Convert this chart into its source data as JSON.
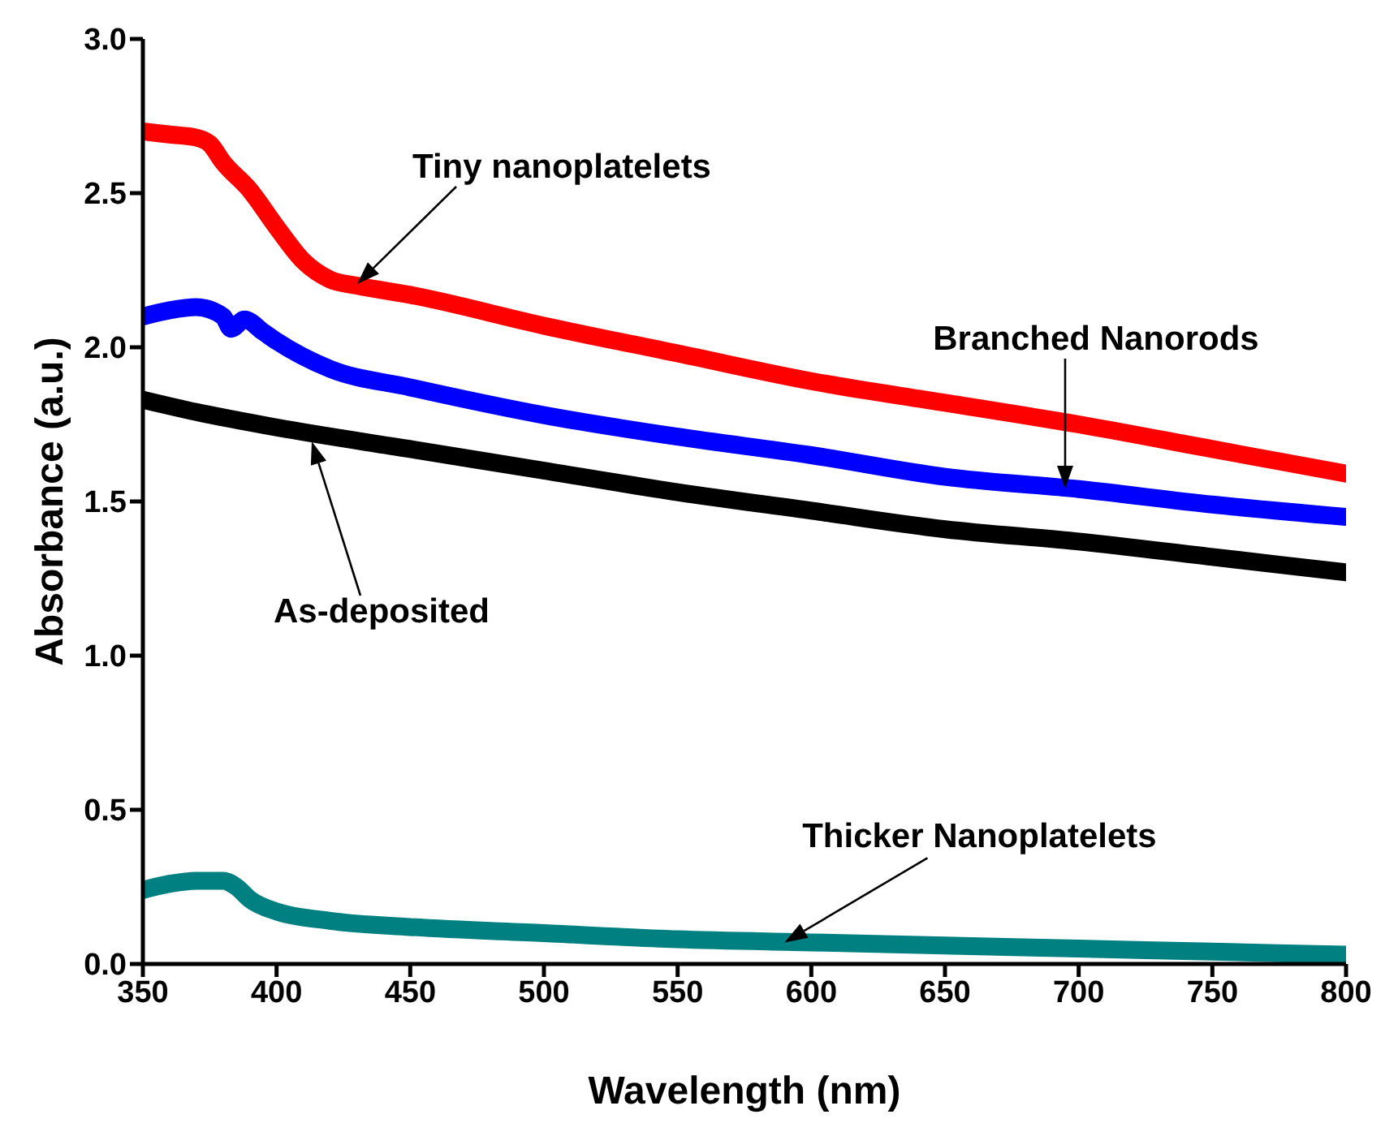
{
  "chart_data": {
    "type": "line",
    "xlabel": "Wavelength (nm)",
    "ylabel": "Absorbance (a.u.)",
    "xlim": [
      350,
      800
    ],
    "xticks": [
      350,
      400,
      450,
      500,
      550,
      600,
      650,
      700,
      750,
      800
    ],
    "ylim": [
      0,
      3.0
    ],
    "yticks": [
      {
        "value": 0,
        "label": "0.0"
      },
      0.5,
      {
        "value": 1,
        "label": "1.0"
      },
      1.5,
      {
        "value": 2,
        "label": "2.0"
      },
      2.5,
      {
        "value": 3,
        "label": "3.0"
      }
    ],
    "grid": false,
    "legend": false,
    "marker": "none",
    "line_style": "solid",
    "series": [
      {
        "color": "#ff0000",
        "x": [
          350,
          360,
          370,
          375,
          380,
          390,
          400,
          410,
          420,
          430,
          450,
          500,
          550,
          600,
          650,
          700,
          750,
          800
        ],
        "values": [
          2.7,
          2.69,
          2.68,
          2.66,
          2.6,
          2.51,
          2.39,
          2.28,
          2.22,
          2.2,
          2.17,
          2.07,
          1.98,
          1.89,
          1.82,
          1.75,
          1.67,
          1.59
        ]
      },
      {
        "color": "#0000ff",
        "x": [
          350,
          360,
          370,
          380,
          383,
          388,
          395,
          400,
          420,
          450,
          500,
          550,
          600,
          650,
          700,
          750,
          800
        ],
        "values": [
          2.1,
          2.12,
          2.13,
          2.1,
          2.06,
          2.09,
          2.05,
          2.02,
          1.93,
          1.87,
          1.78,
          1.71,
          1.65,
          1.58,
          1.54,
          1.49,
          1.45
        ]
      },
      {
        "color": "#000000",
        "x": [
          350,
          370,
          400,
          450,
          500,
          550,
          600,
          650,
          700,
          750,
          800
        ],
        "values": [
          1.83,
          1.79,
          1.74,
          1.67,
          1.6,
          1.53,
          1.47,
          1.41,
          1.37,
          1.32,
          1.27
        ]
      },
      {
        "color": "#008080",
        "x": [
          350,
          360,
          370,
          380,
          385,
          390,
          400,
          420,
          450,
          500,
          550,
          600,
          650,
          700,
          750,
          800
        ],
        "values": [
          0.24,
          0.26,
          0.27,
          0.27,
          0.25,
          0.21,
          0.17,
          0.14,
          0.12,
          0.1,
          0.08,
          0.07,
          0.06,
          0.05,
          0.04,
          0.03
        ]
      }
    ],
    "annotations": [
      "Tiny nanoplatelets",
      "Branched Nanorods",
      "As-deposited",
      {
        "text": "Thicker Nanoplatelets",
        "x": 590,
        "y": 0.07
      }
    ]
  }
}
